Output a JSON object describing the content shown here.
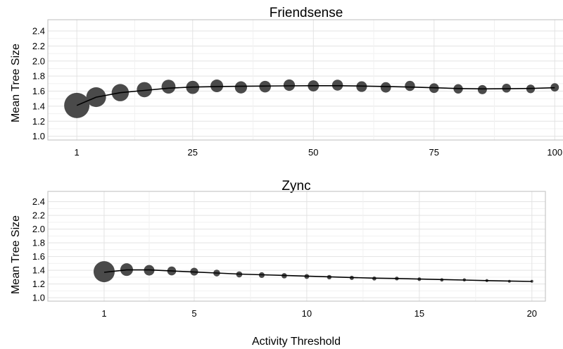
{
  "figure": {
    "xlabel": "Activity Threshold"
  },
  "chart_data": [
    {
      "type": "scatter",
      "title": "Friendsense",
      "xlabel": "",
      "ylabel": "Mean Tree Size",
      "xticks": [
        1,
        25,
        50,
        75,
        100
      ],
      "yticks": [
        1.0,
        1.2,
        1.4,
        1.6,
        1.8,
        2.0,
        2.2,
        2.4
      ],
      "xlim": [
        -5,
        102
      ],
      "ylim": [
        0.95,
        2.55
      ],
      "grid": true,
      "points": [
        {
          "x": 1,
          "y": 1.41,
          "size": 1.0
        },
        {
          "x": 5,
          "y": 1.52,
          "size": 0.78
        },
        {
          "x": 10,
          "y": 1.58,
          "size": 0.68
        },
        {
          "x": 15,
          "y": 1.62,
          "size": 0.6
        },
        {
          "x": 20,
          "y": 1.66,
          "size": 0.55
        },
        {
          "x": 25,
          "y": 1.65,
          "size": 0.52
        },
        {
          "x": 30,
          "y": 1.67,
          "size": 0.5
        },
        {
          "x": 35,
          "y": 1.65,
          "size": 0.48
        },
        {
          "x": 40,
          "y": 1.66,
          "size": 0.46
        },
        {
          "x": 45,
          "y": 1.68,
          "size": 0.45
        },
        {
          "x": 50,
          "y": 1.67,
          "size": 0.44
        },
        {
          "x": 55,
          "y": 1.68,
          "size": 0.43
        },
        {
          "x": 60,
          "y": 1.66,
          "size": 0.42
        },
        {
          "x": 65,
          "y": 1.65,
          "size": 0.41
        },
        {
          "x": 70,
          "y": 1.67,
          "size": 0.4
        },
        {
          "x": 75,
          "y": 1.64,
          "size": 0.38
        },
        {
          "x": 80,
          "y": 1.63,
          "size": 0.37
        },
        {
          "x": 85,
          "y": 1.62,
          "size": 0.36
        },
        {
          "x": 90,
          "y": 1.64,
          "size": 0.35
        },
        {
          "x": 95,
          "y": 1.63,
          "size": 0.34
        },
        {
          "x": 100,
          "y": 1.65,
          "size": 0.33
        }
      ],
      "fit_line": {
        "x": [
          1,
          5,
          10,
          15,
          20,
          25,
          30,
          35,
          40,
          45,
          50,
          55,
          60,
          65,
          70,
          75,
          80,
          85,
          90,
          95,
          100
        ],
        "y": [
          1.41,
          1.52,
          1.58,
          1.61,
          1.64,
          1.655,
          1.66,
          1.665,
          1.668,
          1.67,
          1.672,
          1.672,
          1.668,
          1.662,
          1.655,
          1.645,
          1.635,
          1.63,
          1.632,
          1.636,
          1.645
        ]
      },
      "colors": {
        "point": "#4a4a4a",
        "line": "#000000",
        "grid": "#e3e3e3",
        "frame": "#bdbdbd"
      }
    },
    {
      "type": "scatter",
      "title": "Zync",
      "xlabel": "Activity Threshold",
      "ylabel": "Mean Tree Size",
      "xticks": [
        1,
        5,
        10,
        15,
        20
      ],
      "yticks": [
        1.0,
        1.2,
        1.4,
        1.6,
        1.8,
        2.0,
        2.2,
        2.4
      ],
      "xlim": [
        -1.5,
        20.6
      ],
      "ylim": [
        0.95,
        2.55
      ],
      "grid": true,
      "points": [
        {
          "x": 1,
          "y": 1.38,
          "size": 1.0
        },
        {
          "x": 2,
          "y": 1.41,
          "size": 0.6
        },
        {
          "x": 3,
          "y": 1.4,
          "size": 0.5
        },
        {
          "x": 4,
          "y": 1.39,
          "size": 0.42
        },
        {
          "x": 5,
          "y": 1.38,
          "size": 0.37
        },
        {
          "x": 6,
          "y": 1.36,
          "size": 0.32
        },
        {
          "x": 7,
          "y": 1.34,
          "size": 0.29
        },
        {
          "x": 8,
          "y": 1.33,
          "size": 0.27
        },
        {
          "x": 9,
          "y": 1.32,
          "size": 0.25
        },
        {
          "x": 10,
          "y": 1.31,
          "size": 0.23
        },
        {
          "x": 11,
          "y": 1.3,
          "size": 0.21
        },
        {
          "x": 12,
          "y": 1.29,
          "size": 0.2
        },
        {
          "x": 13,
          "y": 1.28,
          "size": 0.19
        },
        {
          "x": 14,
          "y": 1.28,
          "size": 0.18
        },
        {
          "x": 15,
          "y": 1.27,
          "size": 0.17
        },
        {
          "x": 16,
          "y": 1.26,
          "size": 0.16
        },
        {
          "x": 17,
          "y": 1.26,
          "size": 0.15
        },
        {
          "x": 18,
          "y": 1.25,
          "size": 0.14
        },
        {
          "x": 19,
          "y": 1.24,
          "size": 0.13
        },
        {
          "x": 20,
          "y": 1.24,
          "size": 0.12
        }
      ],
      "fit_line": {
        "x": [
          1,
          2,
          3,
          4,
          5,
          6,
          7,
          8,
          9,
          10,
          11,
          12,
          13,
          14,
          15,
          16,
          17,
          18,
          19,
          20
        ],
        "y": [
          1.37,
          1.405,
          1.405,
          1.39,
          1.375,
          1.36,
          1.345,
          1.335,
          1.325,
          1.315,
          1.305,
          1.295,
          1.285,
          1.28,
          1.272,
          1.265,
          1.258,
          1.25,
          1.243,
          1.237
        ]
      },
      "colors": {
        "point": "#4a4a4a",
        "line": "#000000",
        "grid": "#e3e3e3",
        "frame": "#bdbdbd"
      }
    }
  ]
}
